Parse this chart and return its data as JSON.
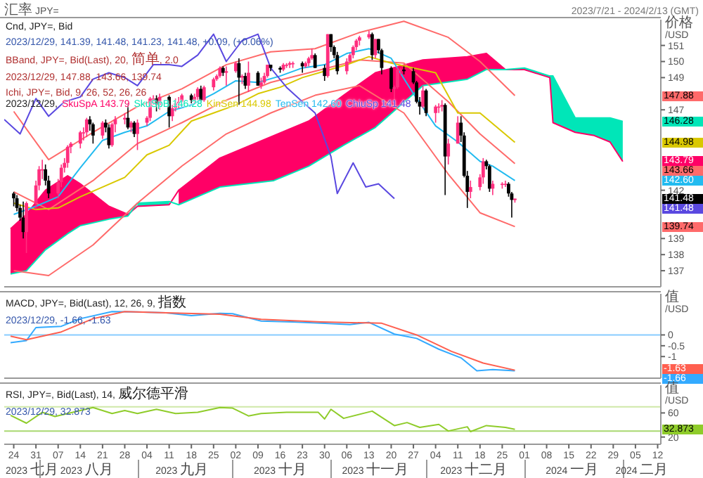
{
  "chart_data": [
    {
      "type": "candlestick",
      "title": "Cnd, JPY=, Bid",
      "subtitle": "2023/12/29, 141.39, 141.48, 141.23, 141.48, +0.09, (+0.06%)",
      "annotations": [
        "汇率 JPY=",
        "2023/7/21 - 2024/2/13 (GMT)",
        "BBand, JPY=, Bid(Last), 20, 简单, 2.0",
        "2023/12/29, 147.88, 143.66, 139.74",
        "Ichi, JPY=, Bid, 9, 26, 52, 26, 26",
        "147.88",
        "146.28",
        "144.98",
        "143.79",
        "143.66",
        "142.60",
        "141.48",
        "141.48",
        "139.74"
      ],
      "legend_title": "2023/12/29,",
      "legend": "top left",
      "ylabel": "价格 /USD",
      "tick_labels": "y",
      "xlim": [
        "2023-07-21",
        "2024-02-13"
      ],
      "ylim": [
        136.0,
        152.6
      ],
      "yticks": [
        137,
        138,
        139,
        142,
        147,
        149,
        150,
        151
      ],
      "series": [
        {
          "type": "line",
          "name": "SkuSpA 143.79",
          "color": "#ff0066",
          "lower": [
            136.8,
            137.0,
            138.3,
            139.3,
            139.8,
            140.2,
            140.4,
            null,
            null,
            141.1,
            142.2,
            142.6,
            143.5,
            144.8,
            145.9,
            148.5,
            148.9,
            149.5,
            149.5,
            null,
            null,
            null,
            null,
            null,
            null,
            null
          ],
          "upper": [
            139.6,
            140.5,
            142.0,
            142.9,
            142.4,
            141.0,
            140.5,
            null,
            null,
            142.0,
            144.0,
            145.4,
            146.3,
            147.9,
            149.3,
            150.1,
            150.3,
            150.5,
            149.5,
            null,
            null,
            null,
            null,
            null,
            null,
            null
          ],
          "x": [
            "2023-07-23",
            "2023-07-28",
            "2023-08-03",
            "2023-08-10",
            "2023-08-14",
            "2023-08-23",
            "2023-08-29",
            "2023-09-01",
            "2023-09-11",
            "2023-09-14",
            "2023-09-27",
            "2023-10-14",
            "2023-10-25",
            "2023-11-05",
            "2023-11-15",
            "2023-11-30",
            "2023-12-14",
            "2023-12-20",
            "2023-12-26",
            "2024-01-01",
            "2024-01-09",
            "2024-01-10",
            "2024-01-17",
            "2024-01-23",
            "2024-01-28",
            "2024-02-01"
          ],
          "values": [
            139.6,
            140.5,
            142.0,
            142.9,
            142.4,
            141.0,
            140.5,
            141.0,
            141.1,
            142.0,
            144.0,
            145.4,
            146.3,
            147.9,
            149.3,
            150.1,
            150.3,
            150.5,
            149.5,
            149.5,
            149.0,
            146.2,
            145.6,
            145.4,
            145.0,
            143.79
          ]
        },
        {
          "type": "line",
          "name": "SkuSpB 146.28",
          "color": "#00e6b8",
          "lower": [
            null,
            null,
            null,
            null,
            null,
            null,
            null,
            141.0,
            141.1,
            null,
            null,
            null,
            null,
            null,
            null,
            null,
            null,
            null,
            149.5,
            149.5,
            149.0,
            146.2,
            145.6,
            145.4,
            145.0,
            143.79
          ],
          "upper": [
            null,
            null,
            null,
            null,
            null,
            null,
            null,
            141.2,
            141.3,
            null,
            null,
            null,
            null,
            null,
            null,
            null,
            null,
            null,
            149.5,
            149.6,
            149.1,
            149.1,
            146.5,
            146.5,
            146.5,
            146.28
          ],
          "x": [
            "2023-07-23",
            "2023-07-28",
            "2023-08-03",
            "2023-08-10",
            "2023-08-14",
            "2023-08-23",
            "2023-08-29",
            "2023-09-01",
            "2023-09-11",
            "2023-09-14",
            "2023-09-27",
            "2023-10-14",
            "2023-10-25",
            "2023-11-05",
            "2023-11-15",
            "2023-11-30",
            "2023-12-14",
            "2023-12-20",
            "2023-12-26",
            "2024-01-01",
            "2024-01-09",
            "2024-01-10",
            "2024-01-17",
            "2024-01-23",
            "2024-01-28",
            "2024-02-01"
          ],
          "values": [
            136.8,
            137.0,
            138.3,
            139.3,
            139.8,
            140.2,
            140.4,
            141.2,
            141.3,
            141.1,
            142.2,
            142.6,
            143.5,
            144.8,
            145.9,
            148.5,
            148.9,
            149.5,
            149.5,
            149.6,
            149.1,
            149.1,
            146.5,
            146.5,
            146.5,
            146.28
          ]
        },
        {
          "type": "line",
          "color": "#ff6a6a",
          "x": [
            "2023-07-24",
            "2023-08-04",
            "2023-08-18",
            "2023-09-01",
            "2023-09-15",
            "2023-09-29",
            "2023-10-13",
            "2023-10-27",
            "2023-11-10",
            "2023-11-24",
            "2023-12-08",
            "2023-12-18",
            "2023-12-29"
          ],
          "values": [
            146.9,
            143.9,
            145.6,
            147.2,
            148.3,
            149.8,
            150.6,
            150.8,
            151.8,
            152.5,
            151.5,
            150.0,
            147.88
          ]
        },
        {
          "type": "line",
          "color": "#ff6a6a",
          "x": [
            "2023-07-24",
            "2023-08-04",
            "2023-08-18",
            "2023-09-01",
            "2023-09-15",
            "2023-09-29",
            "2023-10-13",
            "2023-10-27",
            "2023-11-10",
            "2023-11-24",
            "2023-12-08",
            "2023-12-18",
            "2023-12-29"
          ],
          "values": [
            141.9,
            140.8,
            142.6,
            144.9,
            146.2,
            147.6,
            148.7,
            149.4,
            150.1,
            149.9,
            147.5,
            145.5,
            143.66
          ]
        },
        {
          "type": "line",
          "color": "#ff6a6a",
          "x": [
            "2023-07-24",
            "2023-08-04",
            "2023-08-18",
            "2023-09-01",
            "2023-09-15",
            "2023-09-29",
            "2023-10-13",
            "2023-10-27",
            "2023-11-10",
            "2023-11-24",
            "2023-12-08",
            "2023-12-18",
            "2023-12-29"
          ],
          "values": [
            137.0,
            136.7,
            138.6,
            141.2,
            143.5,
            145.5,
            146.8,
            147.9,
            148.5,
            146.8,
            143.0,
            140.6,
            139.74
          ]
        },
        {
          "type": "line",
          "name": "KinSen 144.98",
          "color": "#d9c800",
          "x": [
            "2023-07-24",
            "2023-07-31",
            "2023-08-07",
            "2023-08-14",
            "2023-08-21",
            "2023-08-28",
            "2023-09-04",
            "2023-09-11",
            "2023-09-18",
            "2023-09-25",
            "2023-10-02",
            "2023-10-09",
            "2023-10-16",
            "2023-10-23",
            "2023-10-30",
            "2023-11-06",
            "2023-11-13",
            "2023-11-20",
            "2023-11-27",
            "2023-12-04",
            "2023-12-11",
            "2023-12-18",
            "2023-12-29"
          ],
          "values": [
            141.2,
            140.8,
            140.9,
            141.6,
            142.2,
            142.8,
            144.2,
            144.8,
            146.3,
            146.8,
            147.3,
            148.0,
            148.4,
            149.0,
            149.4,
            149.8,
            150.3,
            149.9,
            149.6,
            149.3,
            146.8,
            146.8,
            144.98
          ]
        },
        {
          "type": "line",
          "name": "TenSen 142.60",
          "color": "#22bbf0",
          "x": [
            "2023-07-24",
            "2023-07-31",
            "2023-08-07",
            "2023-08-14",
            "2023-08-21",
            "2023-08-28",
            "2023-09-04",
            "2023-09-11",
            "2023-09-18",
            "2023-09-25",
            "2023-10-02",
            "2023-10-09",
            "2023-10-16",
            "2023-10-23",
            "2023-10-30",
            "2023-11-06",
            "2023-11-13",
            "2023-11-20",
            "2023-11-27",
            "2023-12-04",
            "2023-12-11",
            "2023-12-18",
            "2023-12-22",
            "2023-12-29"
          ],
          "values": [
            140.5,
            141.0,
            141.6,
            143.4,
            145.1,
            145.6,
            146.0,
            146.9,
            147.3,
            148.0,
            148.8,
            148.7,
            149.1,
            149.6,
            149.8,
            150.5,
            150.8,
            150.2,
            148.0,
            146.0,
            145.0,
            143.8,
            143.5,
            142.6
          ]
        },
        {
          "type": "line",
          "name": "ChiuSp 141.48",
          "color": "#5a48e0",
          "x": [
            "2023-07-21",
            "2023-07-26",
            "2023-07-31",
            "2023-08-04",
            "2023-08-09",
            "2023-08-14",
            "2023-08-18",
            "2023-08-23",
            "2023-08-28",
            "2023-09-01",
            "2023-09-06",
            "2023-09-11",
            "2023-09-15",
            "2023-09-20",
            "2023-09-25",
            "2023-09-29",
            "2023-10-04",
            "2023-10-09",
            "2023-10-13",
            "2023-10-18",
            "2023-10-23",
            "2023-10-27",
            "2023-11-01",
            "2023-11-03",
            "2023-11-08",
            "2023-11-12",
            "2023-11-16",
            "2023-11-21"
          ],
          "values": [
            146.4,
            145.5,
            147.7,
            146.6,
            147.5,
            147.8,
            148.9,
            149.3,
            149.0,
            148.5,
            149.8,
            149.8,
            149.7,
            150.4,
            151.7,
            150.0,
            151.3,
            151.7,
            149.6,
            148.4,
            147.5,
            146.8,
            144.1,
            141.8,
            143.7,
            142.2,
            142.4,
            141.48
          ]
        },
        {
          "x": [
            "2023-07-24",
            "2023-07-25",
            "2023-07-26",
            "2023-07-27",
            "2023-07-28",
            "2023-07-31",
            "2023-08-01",
            "2023-08-02",
            "2023-08-03",
            "2023-08-04",
            "2023-08-07",
            "2023-08-08",
            "2023-08-09",
            "2023-08-10",
            "2023-08-11",
            "2023-08-14",
            "2023-08-15",
            "2023-08-16",
            "2023-08-17",
            "2023-08-18",
            "2023-08-21",
            "2023-08-22",
            "2023-08-23",
            "2023-08-24",
            "2023-08-25",
            "2023-08-28",
            "2023-08-29",
            "2023-08-30",
            "2023-08-31",
            "2023-09-01",
            "2023-09-04",
            "2023-09-05",
            "2023-09-06",
            "2023-09-07",
            "2023-09-08",
            "2023-09-11",
            "2023-09-12",
            "2023-09-13",
            "2023-09-14",
            "2023-09-15",
            "2023-09-18",
            "2023-09-19",
            "2023-09-20",
            "2023-09-21",
            "2023-09-22",
            "2023-09-25",
            "2023-09-26",
            "2023-09-27",
            "2023-09-28",
            "2023-09-29",
            "2023-10-02",
            "2023-10-03",
            "2023-10-04",
            "2023-10-05",
            "2023-10-06",
            "2023-10-09",
            "2023-10-10",
            "2023-10-11",
            "2023-10-12",
            "2023-10-13",
            "2023-10-16",
            "2023-10-17",
            "2023-10-18",
            "2023-10-19",
            "2023-10-20",
            "2023-10-23",
            "2023-10-24",
            "2023-10-25",
            "2023-10-26",
            "2023-10-27",
            "2023-10-30",
            "2023-10-31",
            "2023-11-01",
            "2023-11-02",
            "2023-11-03",
            "2023-11-06",
            "2023-11-07",
            "2023-11-08",
            "2023-11-09",
            "2023-11-10",
            "2023-11-13",
            "2023-11-14",
            "2023-11-15",
            "2023-11-16",
            "2023-11-17",
            "2023-11-20",
            "2023-11-21",
            "2023-11-22",
            "2023-11-23",
            "2023-11-24",
            "2023-11-27",
            "2023-11-28",
            "2023-11-29",
            "2023-11-30",
            "2023-12-01",
            "2023-12-04",
            "2023-12-05",
            "2023-12-06",
            "2023-12-07",
            "2023-12-08",
            "2023-12-11",
            "2023-12-12",
            "2023-12-13",
            "2023-12-14",
            "2023-12-15",
            "2023-12-18",
            "2023-12-19",
            "2023-12-20",
            "2023-12-21",
            "2023-12-22",
            "2023-12-25",
            "2023-12-26",
            "2023-12-27",
            "2023-12-28",
            "2023-12-29"
          ],
          "colors": [
            "#000000",
            "#000000",
            "#000000",
            "#000000",
            "#ff2e7e",
            "#ff2e7e",
            "#ff2e7e",
            "#ff2e7e",
            "#000000",
            "#000000",
            "#ff2e7e",
            "#ff2e7e",
            "#ff2e7e",
            "#ff2e7e",
            "#ff2e7e",
            "#ff2e7e",
            "#ff2e7e",
            "#ff2e7e",
            "#000000",
            "#000000",
            "#ff2e7e",
            "#000000",
            "#000000",
            "#ff2e7e",
            "#ff2e7e",
            "#ff2e7e",
            "#000000",
            "#ff2e7e",
            "#000000",
            "#ff2e7e",
            "#ff2e7e",
            "#ff2e7e",
            "#ff2e7e",
            "#000000",
            "#ff2e7e",
            "#000000",
            "#ff2e7e",
            "#ff2e7e",
            "#ff2e7e",
            "#ff2e7e",
            "#000000",
            "#ff2e7e",
            "#ff2e7e",
            "#000000",
            "#ff2e7e",
            "#ff2e7e",
            "#ff2e7e",
            "#ff2e7e",
            "#000000",
            "#ff2e7e",
            "#ff2e7e",
            "#000000",
            "#ff2e7e",
            "#000000",
            "#ff2e7e",
            "#000000",
            "#ff2e7e",
            "#ff2e7e",
            "#ff2e7e",
            "#000000",
            "#000000",
            "#ff2e7e",
            "#ff2e7e",
            "#ff2e7e",
            "#ff2e7e",
            "#000000",
            "#ff2e7e",
            "#ff2e7e",
            "#ff2e7e",
            "#000000",
            "#000000",
            "#ff2e7e",
            "#000000",
            "#000000",
            "#000000",
            "#ff2e7e",
            "#ff2e7e",
            "#ff2e7e",
            "#ff2e7e",
            "#ff2e7e",
            "#ff2e7e",
            "#000000",
            "#ff2e7e",
            "#000000",
            "#000000",
            "#000000",
            "#ff2e7e",
            "#ff2e7e",
            "#ff2e7e",
            "#000000",
            "#000000",
            "#000000",
            "#000000",
            "#ff2e7e",
            "#000000",
            "#ff2e7e",
            "#ff2e7e",
            "#ff2e7e",
            "#000000",
            "#ff2e7e",
            "#ff2e7e",
            "#000000",
            "#000000",
            "#000000",
            "#ff2e7e",
            "#ff2e7e",
            "#ff2e7e",
            "#000000",
            "#000000",
            "#ff2e7e",
            "#ff2e7e",
            "#ff2e7e",
            "#000000",
            "#000000",
            "#ff2e7e"
          ],
          "ohlc": [
            [
              141.8,
              141.9,
              141.0,
              141.5
            ],
            [
              141.5,
              141.7,
              140.7,
              140.9
            ],
            [
              140.9,
              141.1,
              140.1,
              140.3
            ],
            [
              140.3,
              141.3,
              139.0,
              139.4
            ],
            [
              139.4,
              141.3,
              138.1,
              141.2
            ],
            [
              141.2,
              142.6,
              140.8,
              142.3
            ],
            [
              142.3,
              143.5,
              142.0,
              143.3
            ],
            [
              143.3,
              143.9,
              142.7,
              143.3
            ],
            [
              143.3,
              143.6,
              142.3,
              142.6
            ],
            [
              142.6,
              142.9,
              141.5,
              141.8
            ],
            [
              141.8,
              142.7,
              141.5,
              142.5
            ],
            [
              142.5,
              143.6,
              142.2,
              143.4
            ],
            [
              143.4,
              144.0,
              143.1,
              143.7
            ],
            [
              143.7,
              144.8,
              143.4,
              144.7
            ],
            [
              144.7,
              145.0,
              144.3,
              144.9
            ],
            [
              144.9,
              145.7,
              144.6,
              145.6
            ],
            [
              145.6,
              145.9,
              145.1,
              145.6
            ],
            [
              145.6,
              146.5,
              145.3,
              146.4
            ],
            [
              146.4,
              146.6,
              145.7,
              146.1
            ],
            [
              146.1,
              146.2,
              144.9,
              145.4
            ],
            [
              145.4,
              146.3,
              145.2,
              146.2
            ],
            [
              146.2,
              146.4,
              145.6,
              145.9
            ],
            [
              145.9,
              146.1,
              144.6,
              144.8
            ],
            [
              144.8,
              146.2,
              144.7,
              146.1
            ],
            [
              146.1,
              146.6,
              145.6,
              146.4
            ],
            [
              146.4,
              146.8,
              146.1,
              146.5
            ],
            [
              146.5,
              147.4,
              145.8,
              145.9
            ],
            [
              145.9,
              146.3,
              145.6,
              146.2
            ],
            [
              146.2,
              146.3,
              145.3,
              145.5
            ],
            [
              145.5,
              146.4,
              144.5,
              146.2
            ],
            [
              146.2,
              146.6,
              146.0,
              146.5
            ],
            [
              146.5,
              147.8,
              146.3,
              147.7
            ],
            [
              147.7,
              147.9,
              147.3,
              147.7
            ],
            [
              147.7,
              147.9,
              146.9,
              147.3
            ],
            [
              147.3,
              148.0,
              147.0,
              147.8
            ],
            [
              147.8,
              147.9,
              145.9,
              146.6
            ],
            [
              146.6,
              147.3,
              146.3,
              147.1
            ],
            [
              147.1,
              147.7,
              146.9,
              147.4
            ],
            [
              147.4,
              147.8,
              147.1,
              147.5
            ],
            [
              147.5,
              148.0,
              147.2,
              147.9
            ],
            [
              147.9,
              148.0,
              147.4,
              147.6
            ],
            [
              147.6,
              148.0,
              147.4,
              147.8
            ],
            [
              147.8,
              148.4,
              147.6,
              148.3
            ],
            [
              148.3,
              148.5,
              147.4,
              147.6
            ],
            [
              147.6,
              148.5,
              147.5,
              148.4
            ],
            [
              148.4,
              149.0,
              148.2,
              148.9
            ],
            [
              148.9,
              149.2,
              148.8,
              149.1
            ],
            [
              149.1,
              149.7,
              149.0,
              149.6
            ],
            [
              149.6,
              149.7,
              149.1,
              149.3
            ],
            [
              149.3,
              149.7,
              148.5,
              149.4
            ],
            [
              149.4,
              150.0,
              149.3,
              149.9
            ],
            [
              149.9,
              150.2,
              147.3,
              149.0
            ],
            [
              149.0,
              149.2,
              148.6,
              149.1
            ],
            [
              149.1,
              149.3,
              148.3,
              148.5
            ],
            [
              148.5,
              150.0,
              148.1,
              149.3
            ],
            [
              149.3,
              149.4,
              148.5,
              148.5
            ],
            [
              148.5,
              149.0,
              148.3,
              148.7
            ],
            [
              148.7,
              149.3,
              148.6,
              149.1
            ],
            [
              149.1,
              149.8,
              149.0,
              149.8
            ],
            [
              149.8,
              149.8,
              149.4,
              149.6
            ],
            [
              149.6,
              149.7,
              149.3,
              149.5
            ],
            [
              149.5,
              149.9,
              149.4,
              149.8
            ],
            [
              149.8,
              149.9,
              149.6,
              149.8
            ],
            [
              149.8,
              150.0,
              149.6,
              149.9
            ],
            [
              149.9,
              150.0,
              149.6,
              149.9
            ],
            [
              149.9,
              150.0,
              149.3,
              149.7
            ],
            [
              149.7,
              150.0,
              149.6,
              149.9
            ],
            [
              149.9,
              150.3,
              149.7,
              150.2
            ],
            [
              150.2,
              150.8,
              150.1,
              150.4
            ],
            [
              150.4,
              150.5,
              149.6,
              149.6
            ],
            [
              149.6,
              149.8,
              148.8,
              149.1
            ],
            [
              149.1,
              151.7,
              149.0,
              151.7
            ],
            [
              151.7,
              151.7,
              150.6,
              150.9
            ],
            [
              150.9,
              151.0,
              150.2,
              150.4
            ],
            [
              150.4,
              150.6,
              149.2,
              149.4
            ],
            [
              149.4,
              150.2,
              149.2,
              150.0
            ],
            [
              150.0,
              150.5,
              149.9,
              150.4
            ],
            [
              150.4,
              151.0,
              150.2,
              150.9
            ],
            [
              150.9,
              151.4,
              150.7,
              151.3
            ],
            [
              151.3,
              151.6,
              151.0,
              151.5
            ],
            [
              151.5,
              151.9,
              151.4,
              151.7
            ],
            [
              151.7,
              151.8,
              150.1,
              150.4
            ],
            [
              150.4,
              151.4,
              150.2,
              151.4
            ],
            [
              151.4,
              151.4,
              150.5,
              150.7
            ],
            [
              150.7,
              150.8,
              149.2,
              149.6
            ],
            [
              149.6,
              149.7,
              148.1,
              148.3
            ],
            [
              148.3,
              148.5,
              147.1,
              148.4
            ],
            [
              148.4,
              149.7,
              148.3,
              149.5
            ],
            [
              149.5,
              149.6,
              149.2,
              149.5
            ],
            [
              149.5,
              149.7,
              149.2,
              149.4
            ],
            [
              149.4,
              149.6,
              148.6,
              148.7
            ],
            [
              148.7,
              148.8,
              147.4,
              147.5
            ],
            [
              147.5,
              147.8,
              146.7,
              147.2
            ],
            [
              147.2,
              148.5,
              147.1,
              148.2
            ],
            [
              148.2,
              148.3,
              146.6,
              146.8
            ],
            [
              146.8,
              147.3,
              146.2,
              147.2
            ],
            [
              147.2,
              147.4,
              146.8,
              147.2
            ],
            [
              147.2,
              147.6,
              146.9,
              147.3
            ],
            [
              147.3,
              147.4,
              141.7,
              144.1
            ],
            [
              144.1,
              145.2,
              143.6,
              144.9
            ],
            [
              144.9,
              146.6,
              144.9,
              146.2
            ],
            [
              146.2,
              146.6,
              145.0,
              145.4
            ],
            [
              145.4,
              145.6,
              142.8,
              142.9
            ],
            [
              142.9,
              143.2,
              140.9,
              141.9
            ],
            [
              141.9,
              142.6,
              141.5,
              142.2
            ],
            [
              142.2,
              143.0,
              142.0,
              142.8
            ],
            [
              142.8,
              144.0,
              142.4,
              143.8
            ],
            [
              143.8,
              143.9,
              143.3,
              143.5
            ],
            [
              143.5,
              143.6,
              141.9,
              142.1
            ],
            [
              142.1,
              142.6,
              141.7,
              142.4
            ],
            [
              142.4,
              142.5,
              142.1,
              142.4
            ],
            [
              142.4,
              142.6,
              142.2,
              142.4
            ],
            [
              142.4,
              142.5,
              141.6,
              141.8
            ],
            [
              141.8,
              141.9,
              140.3,
              141.4
            ],
            [
              141.39,
              141.48,
              141.23,
              141.48
            ]
          ]
        }
      ]
    },
    {
      "type": "line",
      "title": "MACD, JPY=, Bid(Last), 12, 26, 9, 指数",
      "subtitle": "2023/12/29, -1.66, -1.63",
      "ylabel": "值 /USD",
      "tick_labels": "y",
      "xlim": [
        "2023-07-21",
        "2024-02-13"
      ],
      "ylim": [
        -2.0,
        1.9
      ],
      "yticks": [
        -1,
        -0.5,
        0
      ],
      "annotations": [
        "-1.63",
        "-1.66"
      ],
      "ref_lines": [
        {
          "axis": "y",
          "value": 0,
          "color": "#88ccff"
        }
      ],
      "series": [
        {
          "color": "#33aaff",
          "x": [
            "2023-07-23",
            "2023-07-28",
            "2023-07-31",
            "2023-08-08",
            "2023-08-14",
            "2023-08-24",
            "2023-09-01",
            "2023-09-10",
            "2023-09-18",
            "2023-09-27",
            "2023-10-01",
            "2023-10-10",
            "2023-10-20",
            "2023-10-29",
            "2023-11-07",
            "2023-11-13",
            "2023-11-21",
            "2023-11-28",
            "2023-12-05",
            "2023-12-12",
            "2023-12-17",
            "2023-12-22",
            "2023-12-29"
          ],
          "values": [
            -0.36,
            -0.26,
            0.34,
            0.4,
            0.75,
            1.08,
            1.06,
            1.02,
            0.89,
            1.0,
            0.98,
            0.64,
            0.6,
            0.54,
            0.48,
            0.58,
            0.04,
            -0.16,
            -0.66,
            -1.06,
            -1.66,
            -1.6,
            -1.66
          ]
        },
        {
          "color": "#ff5f4f",
          "x": [
            "2023-07-23",
            "2023-07-28",
            "2023-08-08",
            "2023-08-18",
            "2023-08-28",
            "2023-09-10",
            "2023-09-27",
            "2023-10-10",
            "2023-10-29",
            "2023-11-17",
            "2023-11-28",
            "2023-12-09",
            "2023-12-19",
            "2023-12-29"
          ],
          "values": [
            -0.06,
            -0.22,
            0.14,
            0.75,
            1.08,
            1.02,
            0.96,
            0.72,
            0.6,
            0.54,
            0,
            -0.76,
            -1.3,
            -1.63
          ]
        }
      ]
    },
    {
      "type": "line",
      "title": "RSI, JPY=, Bid(Last), 14, 威尔德平滑",
      "subtitle": "2023/12/29, 32.873",
      "ylabel": "值 /USD",
      "xlim": [
        "2023-07-21",
        "2024-02-13"
      ],
      "ylim": [
        8,
        106
      ],
      "yticks": [
        20,
        60
      ],
      "annotations": [
        "32.873"
      ],
      "xticks": [
        {
          "value": "2023-07-24",
          "label": "24"
        },
        {
          "value": "2023-07-31",
          "label": "31"
        },
        {
          "value": "2023-08-07",
          "label": "07"
        },
        {
          "value": "2023-08-14",
          "label": "14"
        },
        {
          "value": "2023-08-21",
          "label": "21"
        },
        {
          "value": "2023-08-28",
          "label": "28"
        },
        {
          "value": "2023-09-04",
          "label": "04"
        },
        {
          "value": "2023-09-11",
          "label": "11"
        },
        {
          "value": "2023-09-18",
          "label": "18"
        },
        {
          "value": "2023-09-25",
          "label": "25"
        },
        {
          "value": "2023-10-02",
          "label": "02"
        },
        {
          "value": "2023-10-09",
          "label": "09"
        },
        {
          "value": "2023-10-16",
          "label": "16"
        },
        {
          "value": "2023-10-23",
          "label": "23"
        },
        {
          "value": "2023-10-30",
          "label": "30"
        },
        {
          "value": "2023-11-06",
          "label": "06"
        },
        {
          "value": "2023-11-13",
          "label": "13"
        },
        {
          "value": "2023-11-20",
          "label": "20"
        },
        {
          "value": "2023-11-27",
          "label": "27"
        },
        {
          "value": "2023-12-04",
          "label": "04"
        },
        {
          "value": "2023-12-11",
          "label": "11"
        },
        {
          "value": "2023-12-18",
          "label": "18"
        },
        {
          "value": "2023-12-25",
          "label": "25"
        },
        {
          "value": "2024-01-01",
          "label": "01"
        },
        {
          "value": "2024-01-08",
          "label": "08"
        },
        {
          "value": "2024-01-15",
          "label": "15"
        },
        {
          "value": "2024-01-22",
          "label": "22"
        },
        {
          "value": "2024-01-29",
          "label": "29"
        },
        {
          "value": "2024-02-05",
          "label": "05"
        },
        {
          "value": "2024-02-12",
          "label": "12"
        }
      ],
      "x2lim": [
        "2023-07-21",
        "2024-02-13"
      ],
      "x2ticks": [
        {
          "value": "2023-07-29",
          "label": "2023 七月"
        },
        {
          "value": "2023-08-01",
          "label": null
        },
        {
          "value": "2023-08-16",
          "label": "2023 八月"
        },
        {
          "value": "2023-09-01",
          "label": null
        },
        {
          "value": "2023-09-15",
          "label": "2023 九月"
        },
        {
          "value": "2023-10-01",
          "label": null
        },
        {
          "value": "2023-10-16",
          "label": "2023 十月"
        },
        {
          "value": "2023-11-01",
          "label": null
        },
        {
          "value": "2023-11-15",
          "label": "2023 十一月"
        },
        {
          "value": "2023-12-01",
          "label": null
        },
        {
          "value": "2023-12-16",
          "label": "2023 十二月"
        },
        {
          "value": "2024-01-01",
          "label": null
        },
        {
          "value": "2024-01-16",
          "label": "2024 一月"
        },
        {
          "value": "2024-02-01",
          "label": null
        },
        {
          "value": "2024-02-07",
          "label": "2024 二月"
        }
      ],
      "ref_lines": [
        {
          "axis": "y",
          "value": 70,
          "color": "#cfe8a8"
        },
        {
          "axis": "y",
          "value": 30,
          "color": "#a8d870"
        }
      ],
      "series": [
        {
          "color": "#8fcc2a",
          "x": [
            "2023-07-23",
            "2023-07-28",
            "2023-08-02",
            "2023-08-06",
            "2023-08-14",
            "2023-08-18",
            "2023-08-24",
            "2023-08-28",
            "2023-09-01",
            "2023-09-07",
            "2023-09-13",
            "2023-09-20",
            "2023-09-27",
            "2023-10-01",
            "2023-10-06",
            "2023-10-10",
            "2023-10-18",
            "2023-10-28",
            "2023-10-30",
            "2023-11-01",
            "2023-11-05",
            "2023-11-14",
            "2023-11-21",
            "2023-11-25",
            "2023-11-29",
            "2023-12-05",
            "2023-12-08",
            "2023-12-14",
            "2023-12-15",
            "2023-12-20",
            "2023-12-26",
            "2023-12-29"
          ],
          "values": [
            56,
            43,
            61,
            54,
            64,
            69,
            59,
            64,
            59,
            66,
            59,
            61,
            69,
            68,
            55,
            59,
            61,
            61,
            50,
            66,
            51,
            63,
            39,
            44,
            36,
            41,
            30,
            37,
            29,
            39,
            36,
            32.873
          ]
        }
      ]
    }
  ]
}
